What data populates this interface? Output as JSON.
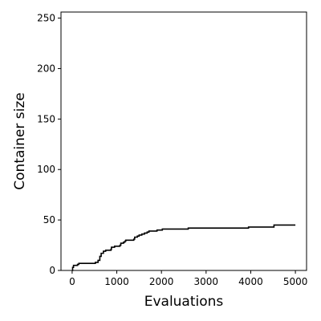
{
  "chart_data": {
    "type": "line",
    "xlabel": "Evaluations",
    "ylabel": "Container size",
    "xlim": [
      -250,
      5250
    ],
    "ylim": [
      0,
      256
    ],
    "xticks": [
      0,
      1000,
      2000,
      3000,
      4000,
      5000
    ],
    "yticks": [
      0,
      50,
      100,
      150,
      200,
      250
    ],
    "grid": false,
    "series": [
      {
        "color": "#000000",
        "step": true,
        "points": [
          [
            0,
            0
          ],
          [
            10,
            3
          ],
          [
            30,
            5
          ],
          [
            120,
            6
          ],
          [
            150,
            7
          ],
          [
            450,
            7
          ],
          [
            520,
            8
          ],
          [
            580,
            10
          ],
          [
            620,
            14
          ],
          [
            650,
            17
          ],
          [
            700,
            19
          ],
          [
            750,
            20
          ],
          [
            870,
            21
          ],
          [
            880,
            23
          ],
          [
            950,
            24
          ],
          [
            1070,
            25
          ],
          [
            1090,
            27
          ],
          [
            1150,
            28
          ],
          [
            1180,
            29
          ],
          [
            1200,
            30
          ],
          [
            1380,
            31
          ],
          [
            1400,
            33
          ],
          [
            1460,
            34
          ],
          [
            1500,
            35
          ],
          [
            1560,
            36
          ],
          [
            1620,
            37
          ],
          [
            1680,
            38
          ],
          [
            1720,
            39
          ],
          [
            1900,
            40
          ],
          [
            2020,
            41
          ],
          [
            2600,
            42
          ],
          [
            3950,
            43
          ],
          [
            4520,
            45
          ],
          [
            5000,
            45
          ]
        ]
      }
    ]
  }
}
